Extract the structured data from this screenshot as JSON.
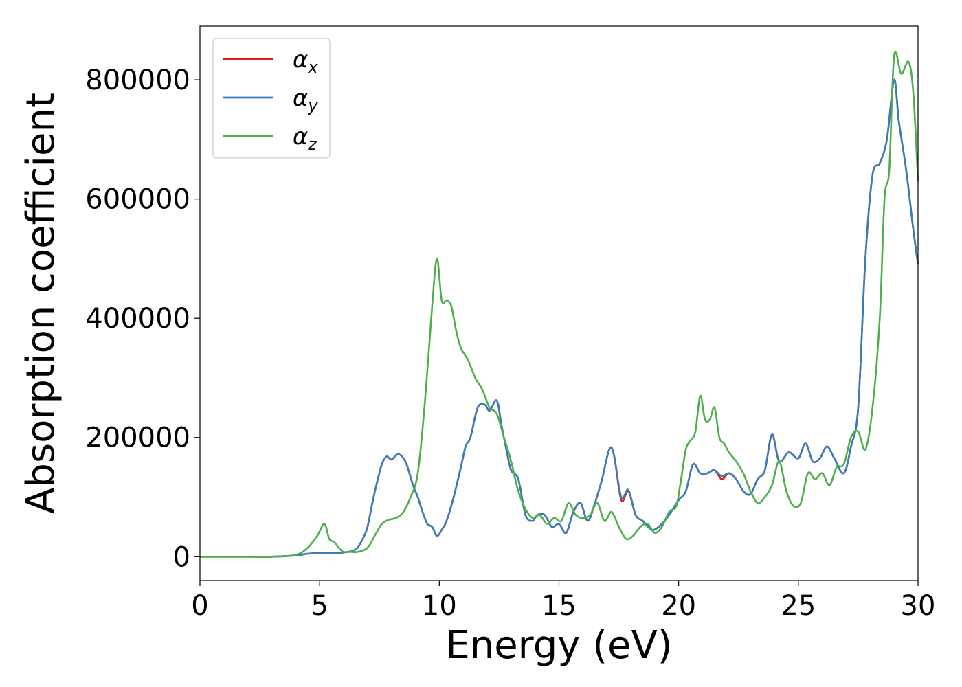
{
  "chart_data": {
    "type": "line",
    "xlabel": "Energy (eV)",
    "ylabel": "Absorption coefficient",
    "xlim": [
      0,
      30
    ],
    "ylim": [
      -40000,
      890000
    ],
    "xticks": [
      0,
      5,
      10,
      15,
      20,
      25,
      30
    ],
    "xtick_labels": [
      "0",
      "5",
      "10",
      "15",
      "20",
      "25",
      "30"
    ],
    "yticks": [
      0,
      200000,
      400000,
      600000,
      800000
    ],
    "ytick_labels": [
      "0",
      "200000",
      "400000",
      "600000",
      "800000"
    ],
    "grid": false,
    "legend_position": "top-left",
    "series": [
      {
        "name": "α",
        "subscript": "x",
        "color": "#e41a1c",
        "x": [
          0,
          1,
          2,
          3,
          4,
          4.5,
          5,
          5.5,
          6,
          6.5,
          6.8,
          7,
          7.2,
          7.4,
          7.6,
          7.8,
          8.0,
          8.3,
          8.6,
          8.9,
          9.1,
          9.3,
          9.5,
          9.7,
          9.9,
          10.1,
          10.3,
          10.6,
          10.9,
          11.1,
          11.3,
          11.6,
          11.9,
          12.1,
          12.4,
          12.6,
          12.8,
          13.0,
          13.3,
          13.6,
          13.9,
          14.1,
          14.4,
          14.7,
          15.0,
          15.3,
          15.6,
          15.9,
          16.2,
          16.5,
          16.8,
          17.1,
          17.3,
          17.6,
          17.9,
          18.2,
          18.5,
          18.9,
          19.3,
          19.6,
          20.0,
          20.3,
          20.6,
          20.9,
          21.2,
          21.5,
          21.8,
          22.1,
          22.4,
          22.7,
          23.0,
          23.3,
          23.6,
          23.9,
          24.2,
          24.6,
          25.0,
          25.3,
          25.6,
          25.9,
          26.2,
          26.5,
          26.9,
          27.2,
          27.5,
          27.8,
          28.1,
          28.4,
          28.7,
          29.0,
          29.2,
          29.5,
          29.8,
          30.0
        ],
        "values": [
          0,
          0,
          0,
          0,
          2000,
          5000,
          6000,
          6000,
          7000,
          12000,
          30000,
          50000,
          90000,
          125000,
          155000,
          168000,
          163000,
          172000,
          158000,
          120000,
          100000,
          75000,
          55000,
          50000,
          35000,
          45000,
          60000,
          100000,
          150000,
          185000,
          200000,
          250000,
          255000,
          245000,
          262000,
          220000,
          180000,
          145000,
          130000,
          70000,
          60000,
          70000,
          70000,
          50000,
          55000,
          40000,
          75000,
          90000,
          60000,
          90000,
          130000,
          180000,
          170000,
          95000,
          110000,
          70000,
          60000,
          45000,
          55000,
          70000,
          95000,
          110000,
          155000,
          140000,
          140000,
          145000,
          130000,
          140000,
          130000,
          110000,
          105000,
          130000,
          145000,
          205000,
          160000,
          175000,
          165000,
          190000,
          160000,
          165000,
          185000,
          165000,
          140000,
          185000,
          250000,
          500000,
          640000,
          660000,
          700000,
          800000,
          730000,
          650000,
          550000,
          490000
        ]
      },
      {
        "name": "α",
        "subscript": "y",
        "color": "#377eb8",
        "x": [
          0,
          1,
          2,
          3,
          4,
          4.5,
          5,
          5.5,
          6,
          6.5,
          6.8,
          7,
          7.2,
          7.4,
          7.6,
          7.8,
          8.0,
          8.3,
          8.6,
          8.9,
          9.1,
          9.3,
          9.5,
          9.7,
          9.9,
          10.1,
          10.3,
          10.6,
          10.9,
          11.1,
          11.3,
          11.6,
          11.9,
          12.1,
          12.4,
          12.6,
          12.8,
          13.0,
          13.3,
          13.6,
          13.9,
          14.1,
          14.4,
          14.7,
          15.0,
          15.3,
          15.6,
          15.9,
          16.2,
          16.5,
          16.8,
          17.1,
          17.3,
          17.6,
          17.9,
          18.2,
          18.5,
          18.9,
          19.3,
          19.6,
          20.0,
          20.3,
          20.6,
          20.9,
          21.2,
          21.5,
          21.8,
          22.1,
          22.4,
          22.7,
          23.0,
          23.3,
          23.6,
          23.9,
          24.2,
          24.6,
          25.0,
          25.3,
          25.6,
          25.9,
          26.2,
          26.5,
          26.9,
          27.2,
          27.5,
          27.8,
          28.1,
          28.4,
          28.7,
          29.0,
          29.2,
          29.5,
          29.8,
          30.0
        ],
        "values": [
          0,
          0,
          0,
          0,
          2000,
          5000,
          6000,
          6000,
          7000,
          12000,
          30000,
          50000,
          90000,
          125000,
          155000,
          168000,
          163000,
          172000,
          158000,
          120000,
          100000,
          75000,
          55000,
          50000,
          35000,
          45000,
          60000,
          100000,
          150000,
          185000,
          200000,
          250000,
          255000,
          245000,
          262000,
          220000,
          180000,
          145000,
          130000,
          70000,
          60000,
          70000,
          70000,
          50000,
          55000,
          40000,
          75000,
          90000,
          60000,
          90000,
          130000,
          180000,
          170000,
          100000,
          112000,
          70000,
          60000,
          45000,
          55000,
          70000,
          95000,
          110000,
          155000,
          140000,
          140000,
          145000,
          135000,
          140000,
          130000,
          110000,
          105000,
          130000,
          145000,
          205000,
          160000,
          175000,
          165000,
          190000,
          160000,
          165000,
          185000,
          165000,
          140000,
          185000,
          250000,
          500000,
          640000,
          660000,
          700000,
          800000,
          730000,
          650000,
          550000,
          490000
        ]
      },
      {
        "name": "α",
        "subscript": "z",
        "color": "#4daf4a",
        "x": [
          0,
          1,
          2,
          3,
          4,
          4.5,
          4.9,
          5.2,
          5.4,
          5.6,
          5.8,
          6.0,
          6.3,
          6.6,
          7.0,
          7.3,
          7.6,
          7.9,
          8.2,
          8.5,
          8.8,
          9.1,
          9.4,
          9.7,
          9.9,
          10.1,
          10.3,
          10.5,
          10.7,
          10.9,
          11.2,
          11.5,
          11.8,
          12.1,
          12.4,
          12.7,
          13.0,
          13.3,
          13.6,
          13.9,
          14.2,
          14.5,
          14.8,
          15.1,
          15.4,
          15.7,
          16.0,
          16.3,
          16.6,
          16.9,
          17.2,
          17.5,
          17.8,
          18.1,
          18.4,
          18.7,
          19.0,
          19.3,
          19.6,
          19.9,
          20.1,
          20.3,
          20.5,
          20.7,
          20.9,
          21.1,
          21.3,
          21.5,
          21.7,
          21.9,
          22.1,
          22.4,
          22.7,
          23.0,
          23.3,
          23.6,
          23.9,
          24.2,
          24.5,
          24.8,
          25.1,
          25.4,
          25.7,
          26.0,
          26.3,
          26.6,
          26.9,
          27.2,
          27.5,
          27.8,
          28.1,
          28.4,
          28.6,
          28.8,
          29.0,
          29.3,
          29.6,
          29.8,
          30.0
        ],
        "values": [
          0,
          0,
          0,
          0,
          3000,
          15000,
          35000,
          55000,
          30000,
          25000,
          15000,
          8000,
          8000,
          8000,
          15000,
          35000,
          55000,
          62000,
          65000,
          75000,
          100000,
          140000,
          260000,
          420000,
          500000,
          430000,
          430000,
          420000,
          380000,
          350000,
          330000,
          300000,
          280000,
          250000,
          240000,
          200000,
          160000,
          110000,
          80000,
          65000,
          70000,
          55000,
          65000,
          60000,
          90000,
          70000,
          65000,
          70000,
          90000,
          60000,
          75000,
          50000,
          30000,
          35000,
          50000,
          55000,
          40000,
          50000,
          75000,
          85000,
          130000,
          180000,
          195000,
          210000,
          270000,
          230000,
          230000,
          250000,
          200000,
          190000,
          175000,
          160000,
          140000,
          110000,
          90000,
          100000,
          120000,
          160000,
          110000,
          85000,
          90000,
          140000,
          130000,
          140000,
          120000,
          150000,
          155000,
          200000,
          210000,
          180000,
          250000,
          400000,
          600000,
          650000,
          840000,
          810000,
          830000,
          780000,
          630000
        ]
      }
    ]
  }
}
